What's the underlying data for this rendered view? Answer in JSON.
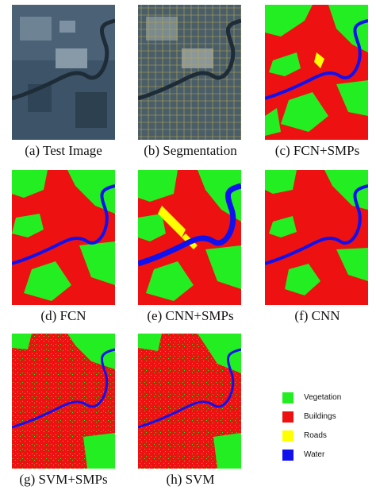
{
  "figure": {
    "panels": [
      {
        "id": "a",
        "caption": "(a) Test Image",
        "kind": "photo"
      },
      {
        "id": "b",
        "caption": "(b) Segmentation",
        "kind": "segmentation"
      },
      {
        "id": "c",
        "caption": "(c) FCN+SMPs",
        "kind": "map-smp"
      },
      {
        "id": "d",
        "caption": "(d) FCN",
        "kind": "map-clean"
      },
      {
        "id": "e",
        "caption": "(e) CNN+SMPs",
        "kind": "map-smp-roads"
      },
      {
        "id": "f",
        "caption": "(f) CNN",
        "kind": "map-clean"
      },
      {
        "id": "g",
        "caption": "(g) SVM+SMPs",
        "kind": "map-noisy"
      },
      {
        "id": "h",
        "caption": "(h) SVM",
        "kind": "map-noisy"
      }
    ],
    "legend": [
      {
        "label": "Vegetation",
        "color": "#22ee22"
      },
      {
        "label": "Buildings",
        "color": "#ee1111"
      },
      {
        "label": "Roads",
        "color": "#ffff00"
      },
      {
        "label": "Water",
        "color": "#1111ee"
      }
    ]
  }
}
